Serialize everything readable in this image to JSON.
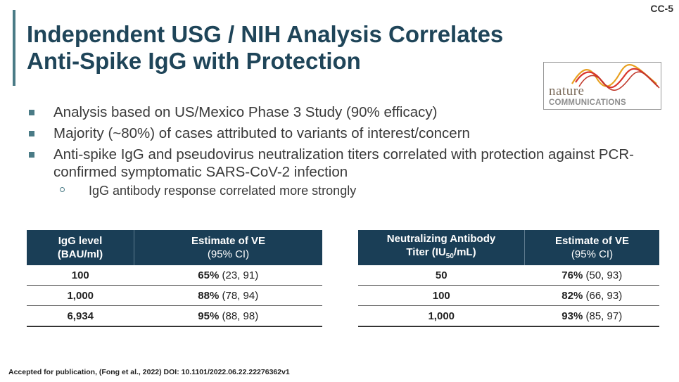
{
  "slide_id": "CC-5",
  "title": {
    "line1": "Independent USG / NIH Analysis Correlates",
    "line2": "Anti-Spike IgG with Protection"
  },
  "logo": {
    "word1": "nature",
    "word2": "COMMUNICATIONS"
  },
  "bullets": [
    "Analysis based on US/Mexico Phase 3 Study (90% efficacy)",
    "Majority (~80%) of cases attributed to variants of interest/concern",
    "Anti-spike IgG and pseudovirus neutralization titers correlated with protection against PCR-confirmed symptomatic SARS-CoV-2 infection"
  ],
  "sub_bullet": "IgG antibody response correlated more strongly",
  "table_igg": {
    "header_col1_line1": "IgG level",
    "header_col1_line2": "(BAU/ml)",
    "header_col2_line1": "Estimate of VE",
    "header_col2_line2": "(95% CI)",
    "rows": [
      {
        "level": "100",
        "ve": "65%",
        "ci": " (23, 91)"
      },
      {
        "level": "1,000",
        "ve": "88%",
        "ci": " (78, 94)"
      },
      {
        "level": "6,934",
        "ve": "95%",
        "ci": " (88, 98)"
      }
    ]
  },
  "table_nab": {
    "header_col1_line1": "Neutralizing Antibody",
    "header_col1_line2_pre": "Titer (IU",
    "header_col1_line2_sub": "50",
    "header_col1_line2_post": "/mL)",
    "header_col2_line1": "Estimate of VE",
    "header_col2_line2": "(95% CI)",
    "rows": [
      {
        "level": "50",
        "ve": "76%",
        "ci": " (50, 93)"
      },
      {
        "level": "100",
        "ve": "82%",
        "ci": " (66, 93)"
      },
      {
        "level": "1,000",
        "ve": "93%",
        "ci": " (85, 97)"
      }
    ]
  },
  "footnote": "Accepted for publication, (Fong et al., 2022) DOI: 10.1101/2022.06.22.22276362v1"
}
